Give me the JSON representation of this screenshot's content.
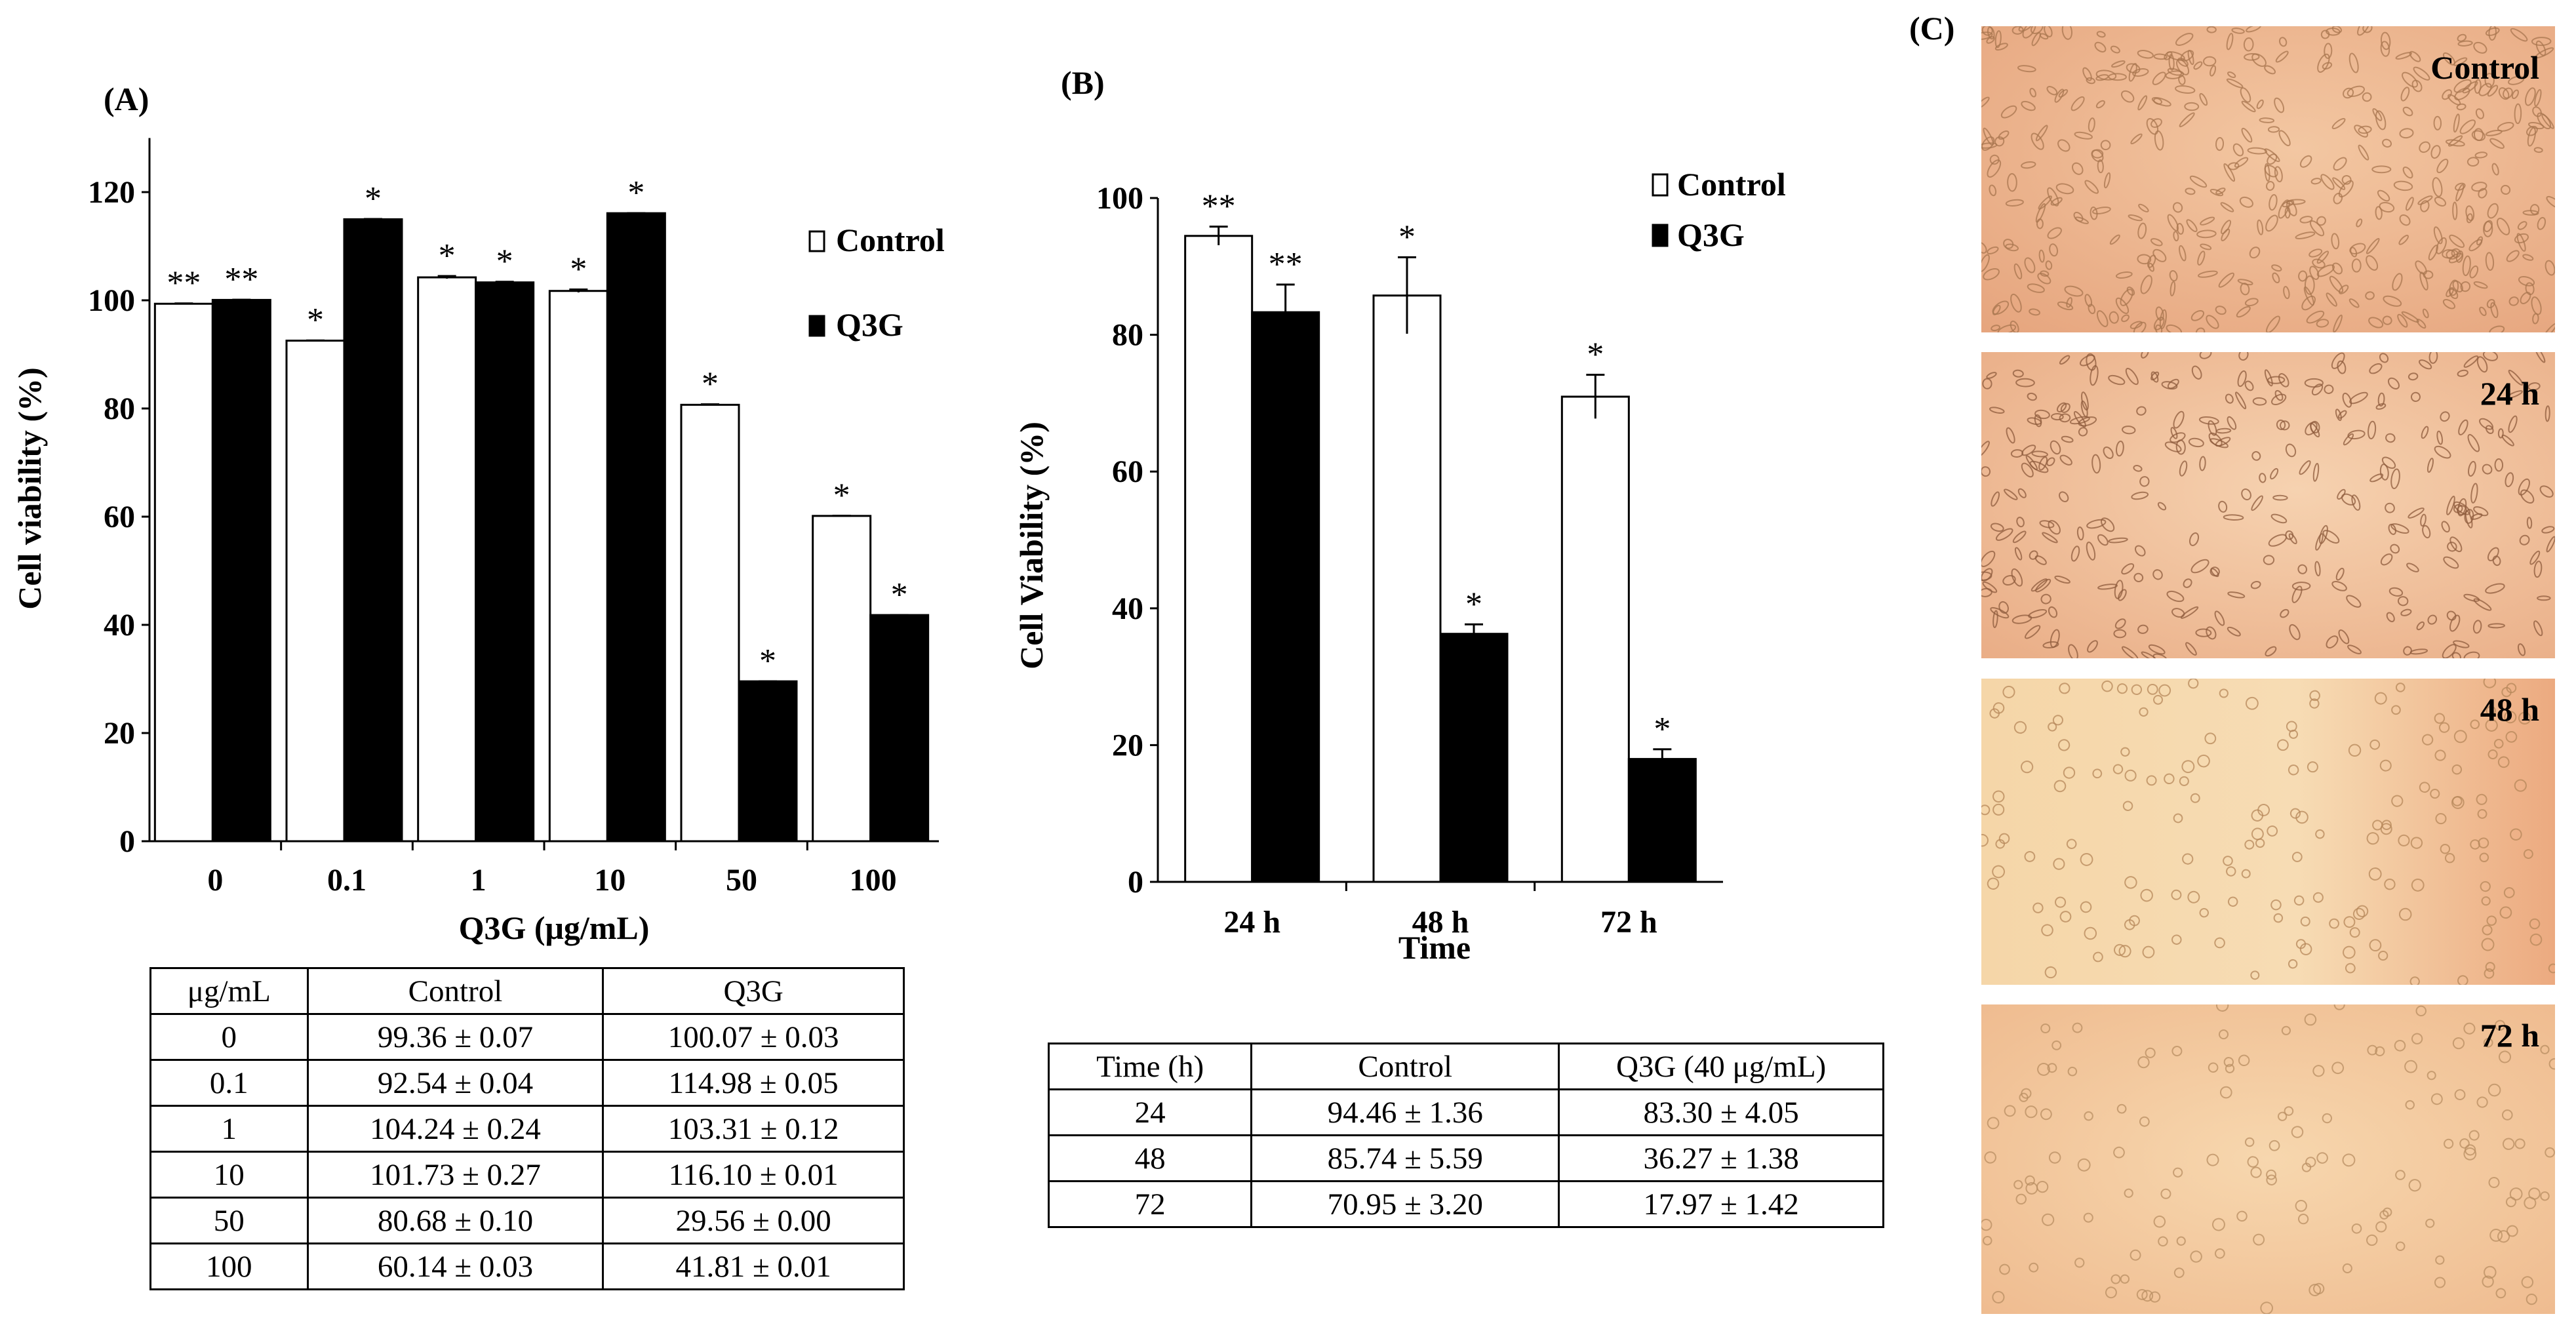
{
  "chart_data": [
    {
      "type": "bar",
      "panel_label": "(A)",
      "title": "",
      "xlabel": "Q3G (μg/mL)",
      "ylabel": "Cell viability (%)",
      "categories": [
        "0",
        "0.1",
        "1",
        "10",
        "50",
        "100"
      ],
      "ylim": [
        0,
        130
      ],
      "yticks": [
        "0",
        "20",
        "40",
        "60",
        "80",
        "100",
        "120"
      ],
      "legend": {
        "position": "top-right",
        "entries": [
          "Control",
          "Q3G"
        ]
      },
      "series": [
        {
          "name": "Control",
          "color": "#ffffff",
          "values": [
            99.36,
            92.54,
            104.24,
            101.73,
            80.68,
            60.14
          ],
          "errors": [
            0.07,
            0.04,
            0.24,
            0.27,
            0.1,
            0.03
          ],
          "marks": [
            "**",
            "*",
            "*",
            "*",
            "*",
            "*"
          ]
        },
        {
          "name": "Q3G",
          "color": "#000000",
          "values": [
            100.07,
            114.98,
            103.31,
            116.1,
            29.56,
            41.81
          ],
          "errors": [
            0.03,
            0.05,
            0.12,
            0.01,
            0.0,
            0.01
          ],
          "marks": [
            "**",
            "*",
            "*",
            "*",
            "*",
            "*"
          ]
        }
      ],
      "table": {
        "headers": [
          "μg/mL",
          "Control",
          "Q3G"
        ],
        "rows": [
          [
            "0",
            "99.36 ± 0.07",
            "100.07 ± 0.03"
          ],
          [
            "0.1",
            "92.54 ± 0.04",
            "114.98 ± 0.05"
          ],
          [
            "1",
            "104.24 ± 0.24",
            "103.31 ± 0.12"
          ],
          [
            "10",
            "101.73 ± 0.27",
            "116.10 ± 0.01"
          ],
          [
            "50",
            "80.68 ± 0.10",
            "29.56 ± 0.00"
          ],
          [
            "100",
            "60.14 ± 0.03",
            "41.81 ± 0.01"
          ]
        ]
      }
    },
    {
      "type": "bar",
      "panel_label": "(B)",
      "title": "",
      "xlabel": "Time",
      "ylabel": "Cell Viability  (%)",
      "categories": [
        "24 h",
        "48 h",
        "72 h"
      ],
      "ylim": [
        0,
        100
      ],
      "yticks": [
        "0",
        "20",
        "40",
        "60",
        "80",
        "100"
      ],
      "legend": {
        "position": "top-right",
        "entries": [
          "Control",
          "Q3G"
        ]
      },
      "series": [
        {
          "name": "Control",
          "color": "#ffffff",
          "values": [
            94.46,
            85.74,
            70.95
          ],
          "errors": [
            1.36,
            5.59,
            3.2
          ],
          "marks": [
            "**",
            "*",
            "*"
          ]
        },
        {
          "name": "Q3G",
          "color": "#000000",
          "values": [
            83.3,
            36.27,
            17.97
          ],
          "errors": [
            4.05,
            1.38,
            1.42
          ],
          "marks": [
            "**",
            "*",
            "*"
          ]
        }
      ],
      "table": {
        "headers": [
          "Time (h)",
          "Control",
          "Q3G (40 μg/mL)"
        ],
        "rows": [
          [
            "24",
            "94.46 ± 1.36",
            "83.30 ± 4.05"
          ],
          [
            "48",
            "85.74 ± 5.59",
            "36.27 ± 1.38"
          ],
          [
            "72",
            "70.95 ± 3.20",
            "17.97 ± 1.42"
          ]
        ]
      }
    }
  ],
  "panel_c": {
    "label": "(C)",
    "images": [
      {
        "label": "Control"
      },
      {
        "label": "24 h"
      },
      {
        "label": "48 h"
      },
      {
        "label": "72 h"
      }
    ]
  }
}
